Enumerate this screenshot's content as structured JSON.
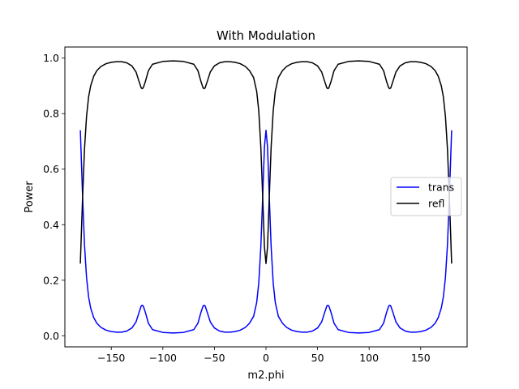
{
  "chart_data": {
    "type": "line",
    "title": "With Modulation",
    "xlabel": "m2.phi",
    "ylabel": "Power",
    "xlim": [
      -195,
      195
    ],
    "ylim": [
      -0.04,
      1.04
    ],
    "xticks": [
      -150,
      -100,
      -50,
      0,
      50,
      100,
      150
    ],
    "xtick_labels": [
      "−150",
      "−100",
      "−50",
      "0",
      "50",
      "100",
      "150"
    ],
    "yticks": [
      0.0,
      0.2,
      0.4,
      0.6,
      0.8,
      1.0
    ],
    "ytick_labels": [
      "0.0",
      "0.2",
      "0.4",
      "0.6",
      "0.8",
      "1.0"
    ],
    "grid": false,
    "legend": {
      "position": "center-right"
    },
    "series": [
      {
        "name": "trans",
        "color": "#0000ff",
        "x": [
          -180,
          -178,
          -176,
          -174,
          -172,
          -170,
          -167,
          -164,
          -160,
          -155,
          -150,
          -145,
          -140,
          -135,
          -130,
          -126,
          -123,
          -121,
          -120,
          -119,
          -117,
          -114,
          -110,
          -100,
          -90,
          -80,
          -70,
          -66,
          -63,
          -61,
          -60,
          -59,
          -57,
          -54,
          -50,
          -45,
          -40,
          -35,
          -30,
          -25,
          -20,
          -16,
          -12,
          -9,
          -7,
          -5,
          -3,
          -1.5,
          0,
          1.5,
          3,
          5,
          7,
          9,
          12,
          16,
          20,
          25,
          30,
          35,
          40,
          45,
          50,
          54,
          57,
          59,
          60,
          61,
          63,
          66,
          70,
          80,
          90,
          100,
          110,
          114,
          117,
          119,
          120,
          121,
          123,
          126,
          130,
          135,
          140,
          145,
          150,
          155,
          160,
          164,
          167,
          170,
          172,
          174,
          176,
          178,
          180
        ],
        "y": [
          0.74,
          0.52,
          0.33,
          0.21,
          0.14,
          0.1,
          0.065,
          0.045,
          0.03,
          0.02,
          0.015,
          0.013,
          0.013,
          0.017,
          0.028,
          0.05,
          0.085,
          0.107,
          0.11,
          0.107,
          0.085,
          0.045,
          0.022,
          0.012,
          0.01,
          0.012,
          0.022,
          0.045,
          0.085,
          0.107,
          0.11,
          0.107,
          0.085,
          0.05,
          0.028,
          0.017,
          0.013,
          0.013,
          0.015,
          0.02,
          0.03,
          0.045,
          0.07,
          0.12,
          0.19,
          0.32,
          0.52,
          0.68,
          0.74,
          0.68,
          0.52,
          0.32,
          0.19,
          0.12,
          0.07,
          0.045,
          0.03,
          0.02,
          0.015,
          0.013,
          0.013,
          0.017,
          0.028,
          0.05,
          0.085,
          0.107,
          0.11,
          0.107,
          0.085,
          0.045,
          0.022,
          0.012,
          0.01,
          0.012,
          0.022,
          0.045,
          0.085,
          0.107,
          0.11,
          0.107,
          0.085,
          0.05,
          0.028,
          0.017,
          0.013,
          0.013,
          0.015,
          0.02,
          0.03,
          0.045,
          0.065,
          0.1,
          0.14,
          0.21,
          0.33,
          0.52,
          0.74
        ]
      },
      {
        "name": "refl",
        "color": "#000000",
        "x": [
          -180,
          -178,
          -176,
          -174,
          -172,
          -170,
          -167,
          -164,
          -160,
          -155,
          -150,
          -145,
          -140,
          -135,
          -130,
          -126,
          -123,
          -121,
          -120,
          -119,
          -117,
          -114,
          -110,
          -100,
          -90,
          -80,
          -70,
          -66,
          -63,
          -61,
          -60,
          -59,
          -57,
          -54,
          -50,
          -45,
          -40,
          -35,
          -30,
          -25,
          -20,
          -16,
          -12,
          -9,
          -7,
          -5,
          -3,
          -1.5,
          0,
          1.5,
          3,
          5,
          7,
          9,
          12,
          16,
          20,
          25,
          30,
          35,
          40,
          45,
          50,
          54,
          57,
          59,
          60,
          61,
          63,
          66,
          70,
          80,
          90,
          100,
          110,
          114,
          117,
          119,
          120,
          121,
          123,
          126,
          130,
          135,
          140,
          145,
          150,
          155,
          160,
          164,
          167,
          170,
          172,
          174,
          176,
          178,
          180
        ],
        "y": [
          0.26,
          0.48,
          0.67,
          0.79,
          0.86,
          0.9,
          0.935,
          0.955,
          0.97,
          0.98,
          0.985,
          0.987,
          0.987,
          0.983,
          0.972,
          0.95,
          0.915,
          0.893,
          0.89,
          0.893,
          0.915,
          0.955,
          0.978,
          0.988,
          0.99,
          0.988,
          0.978,
          0.955,
          0.915,
          0.893,
          0.89,
          0.893,
          0.915,
          0.95,
          0.972,
          0.983,
          0.987,
          0.987,
          0.985,
          0.98,
          0.97,
          0.955,
          0.93,
          0.88,
          0.81,
          0.68,
          0.48,
          0.32,
          0.26,
          0.32,
          0.48,
          0.68,
          0.81,
          0.88,
          0.93,
          0.955,
          0.97,
          0.98,
          0.985,
          0.987,
          0.987,
          0.983,
          0.972,
          0.95,
          0.915,
          0.893,
          0.89,
          0.893,
          0.915,
          0.955,
          0.978,
          0.988,
          0.99,
          0.988,
          0.978,
          0.955,
          0.915,
          0.893,
          0.89,
          0.893,
          0.915,
          0.95,
          0.972,
          0.983,
          0.987,
          0.987,
          0.985,
          0.98,
          0.97,
          0.955,
          0.935,
          0.9,
          0.86,
          0.79,
          0.67,
          0.48,
          0.26
        ]
      }
    ]
  }
}
